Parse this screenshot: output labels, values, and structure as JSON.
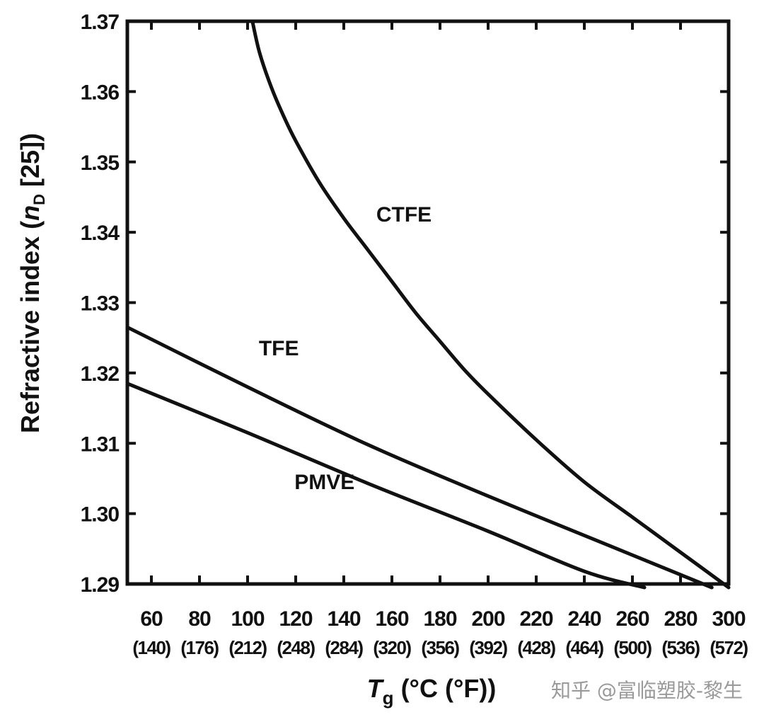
{
  "chart_data": {
    "type": "line",
    "title": "",
    "xlabel_main": "T",
    "xlabel_sub": "g",
    "xlabel_rest": " (°C (°F))",
    "ylabel_main": "Refractive index (",
    "ylabel_italic": "n",
    "ylabel_sub": "D",
    "ylabel_rest": " [25])",
    "xlim": [
      50,
      300
    ],
    "ylim": [
      1.29,
      1.37
    ],
    "x_ticks": [
      60,
      80,
      100,
      120,
      140,
      160,
      180,
      200,
      220,
      240,
      260,
      280,
      300
    ],
    "x_tick_labels": [
      "60",
      "80",
      "100",
      "120",
      "140",
      "160",
      "180",
      "200",
      "220",
      "240",
      "260",
      "280",
      "300"
    ],
    "x_tick_labels_f": [
      "(140)",
      "(176)",
      "(212)",
      "(248)",
      "(284)",
      "(320)",
      "(356)",
      "(392)",
      "(428)",
      "(464)",
      "(500)",
      "(536)",
      "(572)"
    ],
    "y_ticks": [
      1.29,
      1.3,
      1.31,
      1.32,
      1.33,
      1.34,
      1.35,
      1.36,
      1.37
    ],
    "y_tick_labels": [
      "1.29",
      "1.30",
      "1.31",
      "1.32",
      "1.33",
      "1.34",
      "1.35",
      "1.36",
      "1.37"
    ],
    "grid": false,
    "series": [
      {
        "name": "CTFE",
        "x": [
          102,
          105,
          110,
          115,
          120,
          130,
          140,
          150,
          160,
          170,
          180,
          190,
          200,
          220,
          240,
          260,
          280,
          300
        ],
        "y": [
          1.37,
          1.3655,
          1.3605,
          1.3565,
          1.353,
          1.347,
          1.342,
          1.3375,
          1.333,
          1.3285,
          1.3245,
          1.3205,
          1.317,
          1.3105,
          1.3045,
          1.2995,
          1.2945,
          1.2895
        ]
      },
      {
        "name": "TFE",
        "x": [
          50,
          100,
          150,
          200,
          250,
          293
        ],
        "y": [
          1.3265,
          1.318,
          1.3098,
          1.3025,
          1.2955,
          1.2895
        ]
      },
      {
        "name": "PMVE",
        "x": [
          50,
          100,
          150,
          200,
          240,
          265
        ],
        "y": [
          1.3185,
          1.3115,
          1.3043,
          1.2975,
          1.2918,
          1.2895
        ]
      }
    ],
    "annotations": [
      {
        "text": "CTFE",
        "x": 165,
        "y": 1.3415
      },
      {
        "text": "TFE",
        "x": 113,
        "y": 1.3225
      },
      {
        "text": "PMVE",
        "x": 132,
        "y": 1.3035
      }
    ]
  },
  "watermark": "知乎 @富临塑胶-黎生"
}
